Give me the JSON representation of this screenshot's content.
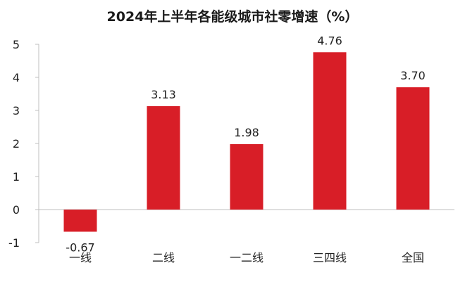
{
  "chart_data": {
    "type": "bar",
    "title": "2024年上半年各能级城市社零增速（%）",
    "xlabel": "",
    "ylabel": "",
    "categories": [
      "一线",
      "二线",
      "一二线",
      "三四线",
      "全国"
    ],
    "values": [
      -0.67,
      3.13,
      1.98,
      4.76,
      3.7
    ],
    "data_labels": [
      "-0.67",
      "3.13",
      "1.98",
      "4.76",
      "3.70"
    ],
    "ylim": [
      -1,
      5
    ],
    "yticks": [
      -1,
      0,
      1,
      2,
      3,
      4,
      5
    ],
    "ytick_labels": [
      "-1",
      "0",
      "1",
      "2",
      "3",
      "4",
      "5"
    ],
    "grid": false,
    "legend": "none",
    "bar_color": "#d81e27",
    "axis_color": "#bfbfbf"
  }
}
